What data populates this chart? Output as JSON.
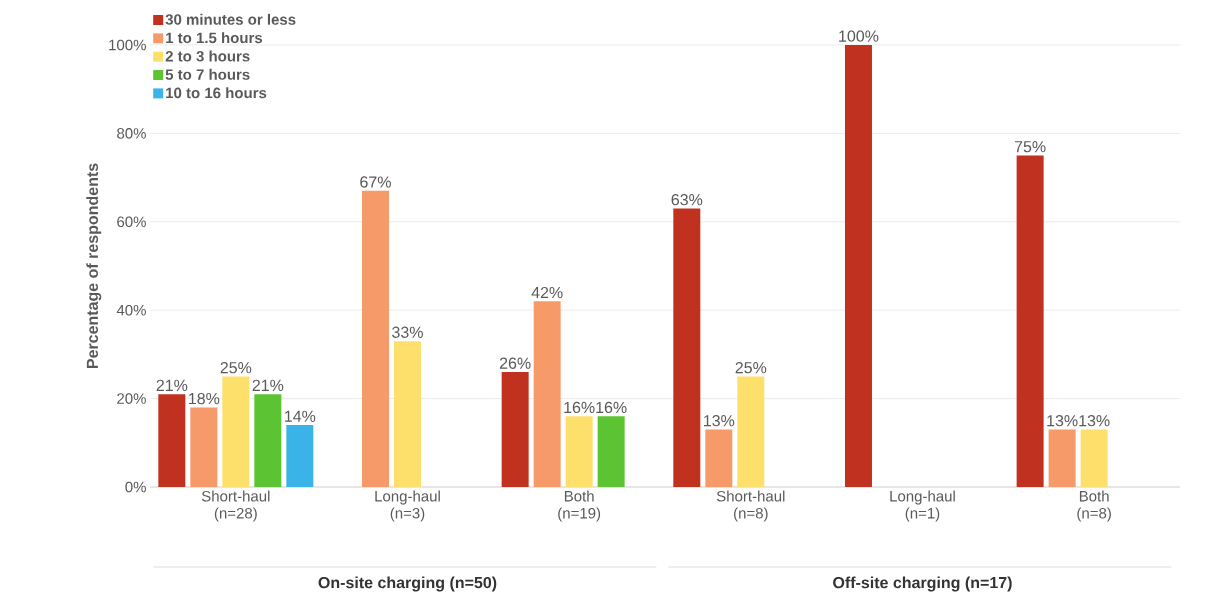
{
  "chart_data": {
    "type": "bar",
    "ylabel": "Percentage of respondents",
    "categories": [
      "Short-haul (n=28)",
      "Long-haul (n=3)",
      "Both (n=19)",
      "Short-haul (n=8)",
      "Long-haul (n=1)",
      "Both (n=8)"
    ],
    "series": [
      {
        "name": "30 minutes or less",
        "color": "#c0311f",
        "values": [
          21,
          null,
          26,
          63,
          100,
          75
        ],
        "value_labels": [
          "21%",
          null,
          "26%",
          "63%",
          "100%",
          "75%"
        ]
      },
      {
        "name": "1 to 1.5 hours",
        "color": "#f79a6a",
        "values": [
          18,
          67,
          42,
          13,
          null,
          13
        ],
        "value_labels": [
          "18%",
          "67%",
          "42%",
          "13%",
          null,
          "13%"
        ]
      },
      {
        "name": "2 to 3 hours",
        "color": "#fde06b",
        "values": [
          25,
          33,
          16,
          25,
          null,
          13
        ],
        "value_labels": [
          "25%",
          "33%",
          "16%",
          "25%",
          null,
          "13%"
        ]
      },
      {
        "name": "5 to 7 hours",
        "color": "#5cc432",
        "values": [
          21,
          null,
          16,
          null,
          null,
          null
        ],
        "value_labels": [
          "21%",
          null,
          "16%",
          null,
          null,
          null
        ]
      },
      {
        "name": "10 to 16 hours",
        "color": "#3ab4e8",
        "values": [
          14,
          null,
          null,
          null,
          null,
          null
        ],
        "value_labels": [
          "14%",
          null,
          null,
          null,
          null,
          null
        ]
      }
    ],
    "ylim": [
      0,
      100
    ],
    "yticks": [
      {
        "value": 0,
        "label": "0%"
      },
      {
        "value": 20,
        "label": "20%"
      },
      {
        "value": 40,
        "label": "40%"
      },
      {
        "value": 60,
        "label": "60%"
      },
      {
        "value": 80,
        "label": "80%"
      },
      {
        "value": 100,
        "label": "100%"
      }
    ],
    "grid": "y",
    "legend": "top left",
    "annotations": [
      "On-site charging (n=50)",
      "Off-site charging (n=17)"
    ]
  }
}
